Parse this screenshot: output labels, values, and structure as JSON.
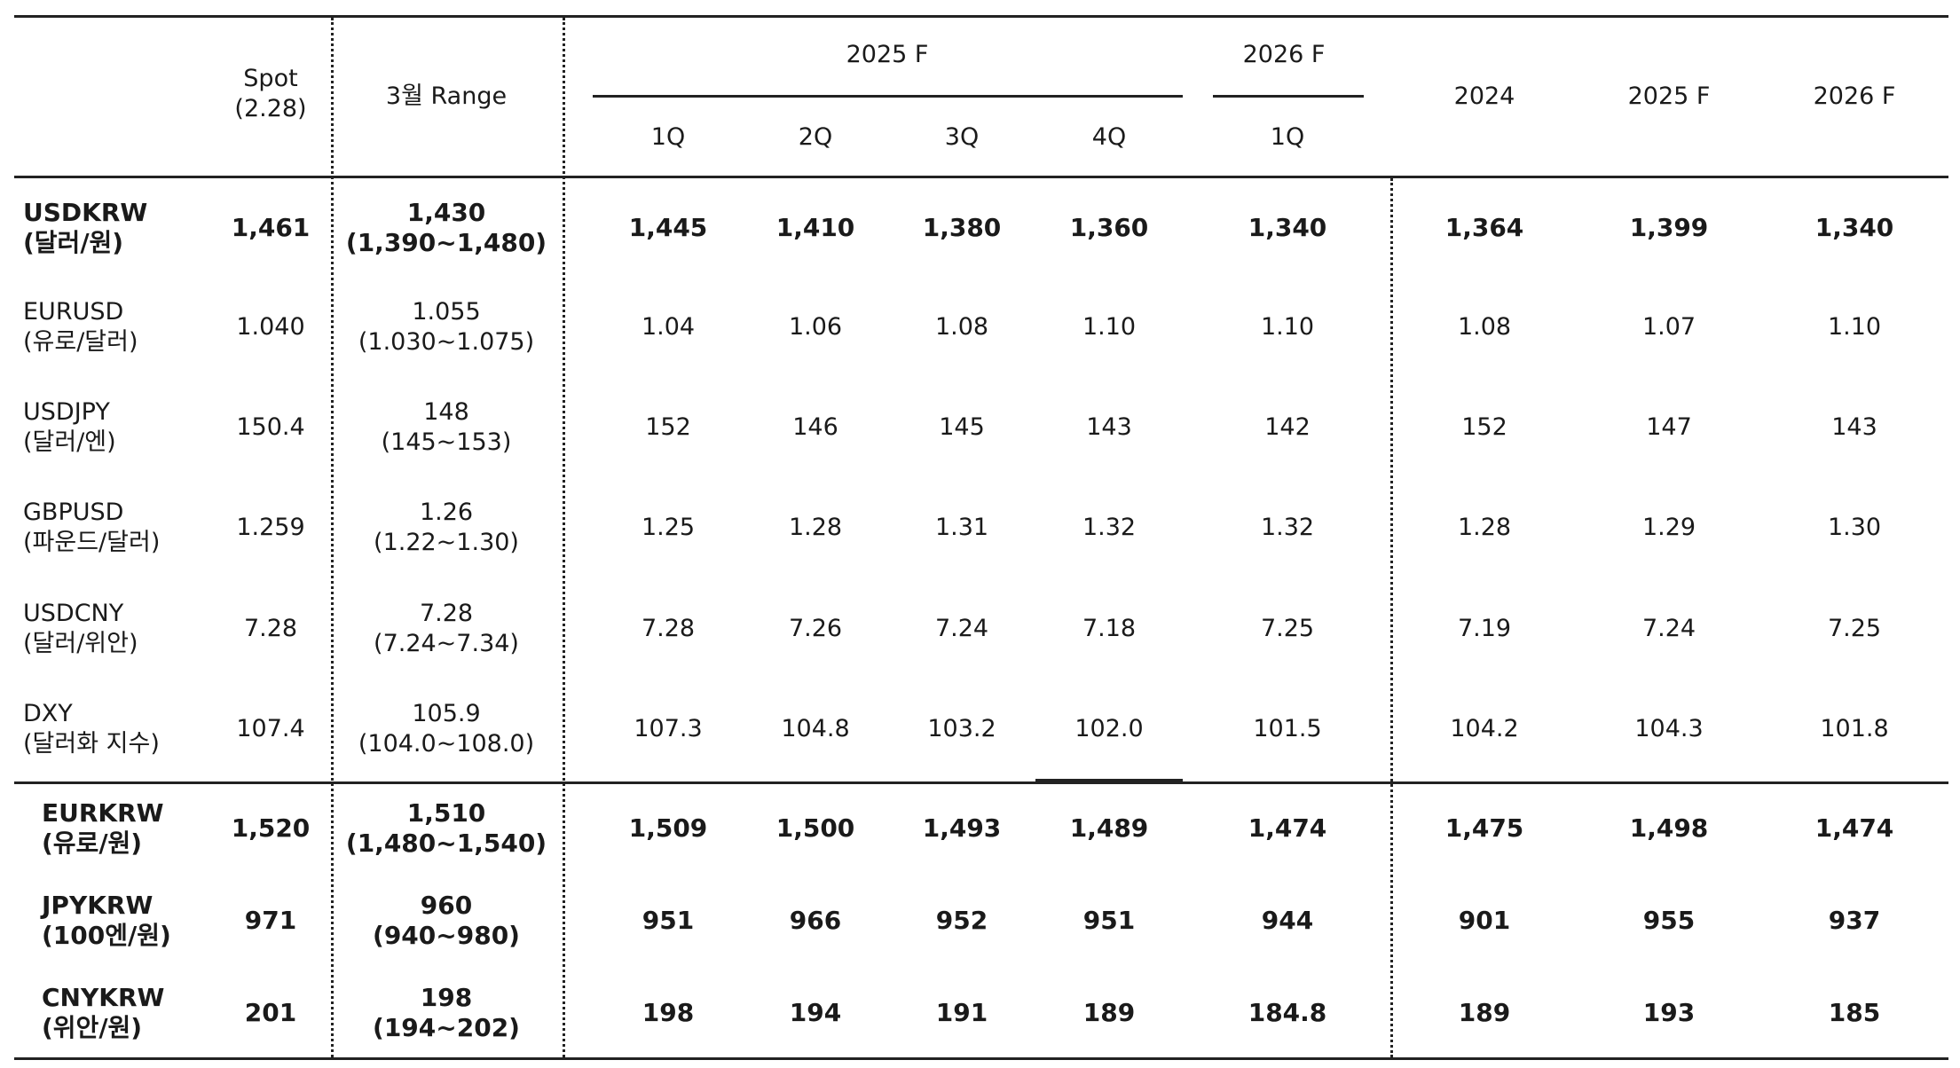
{
  "header": {
    "spot": "Spot",
    "spot_date": "(2.28)",
    "range": "3월 Range",
    "group_2025": "2025 F",
    "group_2026": "2026 F",
    "quarters": [
      "1Q",
      "2Q",
      "3Q",
      "4Q",
      "1Q"
    ],
    "annual": [
      "2024",
      "2025 F",
      "2026 F"
    ]
  },
  "rows": [
    {
      "pair": "USDKRW",
      "desc": "(달러/원)",
      "spot": "1,461",
      "range_mid": "1,430",
      "range_band": "(1,390~1,480)",
      "q": [
        "1,445",
        "1,410",
        "1,380",
        "1,360",
        "1,340"
      ],
      "y": [
        "1,364",
        "1,399",
        "1,340"
      ]
    },
    {
      "pair": "EURUSD",
      "desc": "(유로/달러)",
      "spot": "1.040",
      "range_mid": "1.055",
      "range_band": "(1.030~1.075)",
      "q": [
        "1.04",
        "1.06",
        "1.08",
        "1.10",
        "1.10"
      ],
      "y": [
        "1.08",
        "1.07",
        "1.10"
      ]
    },
    {
      "pair": "USDJPY",
      "desc": "(달러/엔)",
      "spot": "150.4",
      "range_mid": "148",
      "range_band": "(145~153)",
      "q": [
        "152",
        "146",
        "145",
        "143",
        "142"
      ],
      "y": [
        "152",
        "147",
        "143"
      ]
    },
    {
      "pair": "GBPUSD",
      "desc": "(파운드/달러)",
      "spot": "1.259",
      "range_mid": "1.26",
      "range_band": "(1.22~1.30)",
      "q": [
        "1.25",
        "1.28",
        "1.31",
        "1.32",
        "1.32"
      ],
      "y": [
        "1.28",
        "1.29",
        "1.30"
      ]
    },
    {
      "pair": "USDCNY",
      "desc": "(달러/위안)",
      "spot": "7.28",
      "range_mid": "7.28",
      "range_band": "(7.24~7.34)",
      "q": [
        "7.28",
        "7.26",
        "7.24",
        "7.18",
        "7.25"
      ],
      "y": [
        "7.19",
        "7.24",
        "7.25"
      ]
    },
    {
      "pair": "DXY",
      "desc": "(달러화 지수)",
      "spot": "107.4",
      "range_mid": "105.9",
      "range_band": "(104.0~108.0)",
      "q": [
        "107.3",
        "104.8",
        "103.2",
        "102.0",
        "101.5"
      ],
      "y": [
        "104.2",
        "104.3",
        "101.8"
      ]
    },
    {
      "pair": "EURKRW",
      "desc": "(유로/원)",
      "spot": "1,520",
      "range_mid": "1,510",
      "range_band": "(1,480~1,540)",
      "q": [
        "1,509",
        "1,500",
        "1,493",
        "1,489",
        "1,474"
      ],
      "y": [
        "1,475",
        "1,498",
        "1,474"
      ]
    },
    {
      "pair": "JPYKRW",
      "desc": "(100엔/원)",
      "spot": "971",
      "range_mid": "960",
      "range_band": "(940~980)",
      "q": [
        "951",
        "966",
        "952",
        "951",
        "944"
      ],
      "y": [
        "901",
        "955",
        "937"
      ]
    },
    {
      "pair": "CNYKRW",
      "desc": "(위안/원)",
      "spot": "201",
      "range_mid": "198",
      "range_band": "(194~202)",
      "q": [
        "198",
        "194",
        "191",
        "189",
        "184.8"
      ],
      "y": [
        "189",
        "193",
        "185"
      ]
    }
  ]
}
